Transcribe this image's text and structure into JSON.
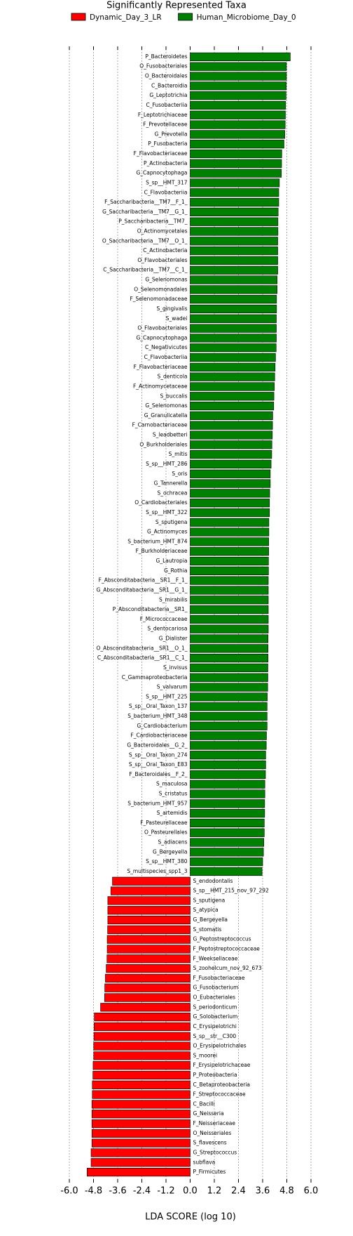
{
  "chart_data": {
    "type": "barh",
    "title": "Significantly Represented Taxa",
    "xlabel": "LDA SCORE (log 10)",
    "xlim": [
      -6.0,
      6.0
    ],
    "xticks": [
      {
        "value": -6.0,
        "label": "-6.0"
      },
      {
        "value": -4.8,
        "label": "-4.8"
      },
      {
        "value": -3.6,
        "label": "-3.6"
      },
      {
        "value": -2.4,
        "label": "-2.4"
      },
      {
        "value": -1.2,
        "label": "-1.2"
      },
      {
        "value": 0,
        "label": "0.0"
      },
      {
        "value": 1.2,
        "label": "1.2"
      },
      {
        "value": 2.4,
        "label": "2.4"
      },
      {
        "value": 3.6,
        "label": "3.6"
      },
      {
        "value": 4.8,
        "label": "4.8"
      },
      {
        "value": 6.0,
        "label": "6.0"
      }
    ],
    "grid": true,
    "legend": "top",
    "categories": [
      "P_Bacteroidetes",
      "O_Fusobacteriales",
      "O_Bacteroidales",
      "C_Bacteroidia",
      "G_Leptotrichia",
      "C_Fusobacteriia",
      "F_Leptotrichiaceae",
      "F_Prevotellaceae",
      "G_Prevotella",
      "P_Fusobacteria",
      "F_Flavobacteriaceae",
      "P_Actinobacteria",
      "G_Capnocytophaga",
      "S_sp__HMT_317",
      "C_Flavobacteriia",
      "F_Saccharibacteria__TM7__F_1_",
      "G_Saccharibacteria__TM7__G_1_",
      "P_Saccharibacteria__TM7_",
      "O_Actinomycetales",
      "O_Saccharibacteria__TM7__O_1_",
      "C_Actinobacteria",
      "O_Flavobacteriales",
      "C_Saccharibacteria__TM7__C_1_",
      "G_Selenomonas",
      "O_Selenomonadales",
      "F_Selenomonadaceae",
      "S_gingivalis",
      "S_wadei",
      "O_Flavobacteriales",
      "G_Capnocytophaga",
      "C_Negativicutes",
      "C_Flavobacteriia",
      "F_Flavobacteriaceae",
      "S_denticola",
      "F_Actinomycetaceae",
      "S_buccalis",
      "G_Selenomonas",
      "G_Granulicatella",
      "F_Carnobacteriaceae",
      "S_leadbetteri",
      "O_Burkholderiales",
      "S_mitis",
      "S_sp__HMT_286",
      "S_oris",
      "G_Tannerella",
      "S_ochracea",
      "O_Cardiobacteriales",
      "S_sp__HMT_322",
      "S_sputigena",
      "G_Actinomyces",
      "S_bacterium_HMT_874",
      "F_Burkholderiaceae",
      "G_Lautropia",
      "G_Rothia",
      "F_Absconditabacteria__SR1__F_1_",
      "G_Absconditabacteria__SR1__G_1_",
      "S_mirabilis",
      "P_Absconditabacteria__SR1_",
      "F_Micrococcaceae",
      "S_dentocariosa",
      "G_Dialister",
      "O_Absconditabacteria__SR1__O_1_",
      "C_Absconditabacteria__SR1__C_1_",
      "S_invisus",
      "C_Gammaproteobacteria",
      "S_valvarum",
      "S_sp__HMT_225",
      "S_sp__Oral_Taxon_137",
      "S_bacterium_HMT_348",
      "G_Cardiobacterium",
      "F_Cardiobacteriaceae",
      "G_Bacteroidales__G_2_",
      "S_sp__Oral_Taxon_274",
      "S_sp__Oral_Taxon_E83",
      "F_Bacteroidales__F_2_",
      "S_maculosa",
      "S_cristatus",
      "S_bacterium_HMT_957",
      "S_artemidis",
      "F_Pasteurellaceae",
      "O_Pasteurellales",
      "S_adiacens",
      "G_Bergeyella",
      "S_sp__HMT_380",
      "S_multispecies_spp1_3",
      "S_endodontalis",
      "S_sp__HMT_215_nov_97_292",
      "S_sputigena",
      "S_atypica",
      "G_Bergeyella",
      "S_stomatis",
      "G_Peptostreptococcus",
      "F_Peptostreptococcaceae",
      "F_Weeksellaceae",
      "S_zoohelcum_nov_92_673",
      "F_Fusobacteriaceae",
      "G_Fusobacterium",
      "O_Eubacteriales",
      "S_periodonticum",
      "G_Solobacterium",
      "C_Erysipelotrichi",
      "S_sp__str__C300",
      "O_Erysipelotrichales",
      "S_moorei",
      "F_Erysipelotrichaceae",
      "P_Proteobacteria",
      "C_Betaproteobacteria",
      "F_Streptococcaceae",
      "C_Bacilli",
      "G_Neisseria",
      "F_Neisseriaceae",
      "O_Neisseriales",
      "S_flavescens",
      "G_Streptococcus",
      "subflava",
      "P_Firmicutes"
    ],
    "series": [
      {
        "name": "Dynamic_Day_3_LR",
        "color": "#ff0000",
        "values": [
          null,
          null,
          null,
          null,
          null,
          null,
          null,
          null,
          null,
          null,
          null,
          null,
          null,
          null,
          null,
          null,
          null,
          null,
          null,
          null,
          null,
          null,
          null,
          null,
          null,
          null,
          null,
          null,
          null,
          null,
          null,
          null,
          null,
          null,
          null,
          null,
          null,
          null,
          null,
          null,
          null,
          null,
          null,
          null,
          null,
          null,
          null,
          null,
          null,
          null,
          null,
          null,
          null,
          null,
          null,
          null,
          null,
          null,
          null,
          null,
          null,
          null,
          null,
          null,
          null,
          null,
          null,
          null,
          null,
          null,
          null,
          null,
          null,
          null,
          null,
          null,
          null,
          null,
          null,
          null,
          null,
          null,
          null,
          null,
          null,
          -3.86,
          -3.94,
          -4.09,
          -4.09,
          -4.09,
          -4.1,
          -4.12,
          -4.12,
          -4.13,
          -4.17,
          -4.21,
          -4.24,
          -4.25,
          -4.45,
          -4.76,
          -4.77,
          -4.78,
          -4.79,
          -4.79,
          -4.82,
          -4.83,
          -4.86,
          -4.86,
          -4.88,
          -4.88,
          -4.88,
          -4.88,
          -4.88,
          -4.92,
          -4.92,
          -5.12
        ]
      },
      {
        "name": "Human_Microbiome_Day_0",
        "color": "#008000",
        "values": [
          4.97,
          4.78,
          4.78,
          4.77,
          4.76,
          4.74,
          4.73,
          4.72,
          4.7,
          4.66,
          4.55,
          4.54,
          4.53,
          4.43,
          4.4,
          4.4,
          4.37,
          4.36,
          4.36,
          4.35,
          4.35,
          4.35,
          4.35,
          4.32,
          4.32,
          4.29,
          4.29,
          4.28,
          4.28,
          4.28,
          4.27,
          4.24,
          4.22,
          4.2,
          4.18,
          4.16,
          4.15,
          4.1,
          4.09,
          4.08,
          4.06,
          4.05,
          4.02,
          3.98,
          3.98,
          3.95,
          3.94,
          3.94,
          3.91,
          3.91,
          3.9,
          3.9,
          3.89,
          3.89,
          3.88,
          3.88,
          3.88,
          3.88,
          3.88,
          3.88,
          3.87,
          3.87,
          3.87,
          3.86,
          3.86,
          3.85,
          3.83,
          3.82,
          3.82,
          3.82,
          3.79,
          3.78,
          3.75,
          3.75,
          3.74,
          3.71,
          3.71,
          3.7,
          3.7,
          3.68,
          3.68,
          3.66,
          3.64,
          3.6,
          3.57,
          null,
          null,
          null,
          null,
          null,
          null,
          null,
          null,
          null,
          null,
          null,
          null,
          null,
          null,
          null,
          null,
          null,
          null,
          null,
          null,
          null,
          null,
          null,
          null,
          null,
          null,
          null,
          null,
          null,
          null,
          null
        ]
      }
    ]
  }
}
